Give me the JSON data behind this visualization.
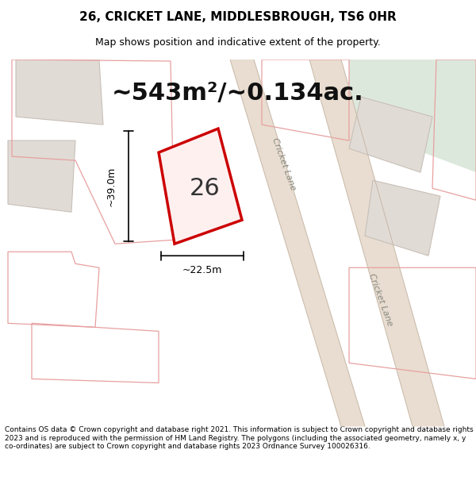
{
  "title_line1": "26, CRICKET LANE, MIDDLESBROUGH, TS6 0HR",
  "title_line2": "Map shows position and indicative extent of the property.",
  "area_text": "~543m²/~0.134ac.",
  "label_number": "26",
  "dim_width": "~22.5m",
  "dim_height": "~39.0m",
  "road_label": "Cricket Lane",
  "footer_text": "Contains OS data © Crown copyright and database right 2021. This information is subject to Crown copyright and database rights 2023 and is reproduced with the permission of HM Land Registry. The polygons (including the associated geometry, namely x, y co-ordinates) are subject to Crown copyright and database rights 2023 Ordnance Survey 100026316.",
  "bg_color": "#f7f7f0",
  "map_bg": "#f0ede8",
  "road_color": "#ffffff",
  "plot_outline_color": "#e8e0d8",
  "highlight_color": "#cc0000",
  "building_fill": "#e8e0d8",
  "building_stroke": "#c0b8b0",
  "green_area": "#dce8dc"
}
